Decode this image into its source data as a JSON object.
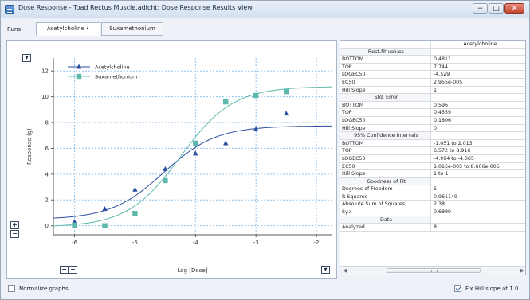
{
  "window": {
    "title": "Dose Response - Toad Rectus Muscle.adicht: Dose Response Results View",
    "buttons": {
      "minimize": "−",
      "maximize": "□",
      "close": "✕"
    }
  },
  "runs": {
    "label": "Runs:",
    "tabs": [
      {
        "label": "Acetylcholine •",
        "selected": true
      },
      {
        "label": "Suxamethonium",
        "selected": false
      }
    ]
  },
  "graph": {
    "controls": {
      "y_zoom_in": "+",
      "y_zoom_out": "−",
      "x_zoom_out": "−",
      "x_zoom_in": "+",
      "menu_top": "▾",
      "menu_bottom": "▾"
    }
  },
  "chart_data": {
    "type": "scatter",
    "xlabel": "Log [Dose]",
    "ylabel": "Response (g)",
    "xlim": [
      -6.35,
      -1.75
    ],
    "ylim": [
      -0.7,
      13.0
    ],
    "x_ticks": [
      -6,
      -5,
      -4,
      -3,
      -2
    ],
    "y_ticks": [
      0,
      2,
      4,
      6,
      8,
      10,
      12
    ],
    "grid": true,
    "legend": "top-left",
    "series": [
      {
        "name": "Acetylcholine",
        "color": "#2a4ea1",
        "marker": "triangle",
        "points": [
          [
            -6.0,
            0.3
          ],
          [
            -5.5,
            1.3
          ],
          [
            -5.0,
            2.8
          ],
          [
            -4.5,
            4.4
          ],
          [
            -4.0,
            5.6
          ],
          [
            -3.5,
            6.4
          ],
          [
            -3.0,
            7.5
          ],
          [
            -2.5,
            8.7
          ]
        ],
        "fit": {
          "bottom": 0.4811,
          "top": 7.744,
          "logec50": -4.529,
          "hill": 1
        }
      },
      {
        "name": "Suxamethonium",
        "color": "#5cb8aa",
        "marker": "square",
        "points": [
          [
            -6.0,
            0.05
          ],
          [
            -5.5,
            0.0
          ],
          [
            -5.0,
            0.95
          ],
          [
            -4.5,
            3.5
          ],
          [
            -4.0,
            6.4
          ],
          [
            -3.5,
            9.6
          ],
          [
            -3.0,
            10.1
          ],
          [
            -2.5,
            10.4
          ]
        ],
        "fit": {
          "bottom": -0.1,
          "top": 10.8,
          "logec50": -4.25,
          "hill": 1
        }
      }
    ]
  },
  "results": {
    "column_header": "Acetylcholine",
    "rows": [
      {
        "k": "Best-fit values",
        "v": "",
        "section": true
      },
      {
        "k": "BOTTOM",
        "v": "0.4811"
      },
      {
        "k": "TOP",
        "v": "7.744"
      },
      {
        "k": "LOGEC50",
        "v": "-4.529"
      },
      {
        "k": "EC50",
        "v": "2.955e-005"
      },
      {
        "k": "Hill Slope",
        "v": "1"
      },
      {
        "k": "Std. Error",
        "v": "",
        "section": true
      },
      {
        "k": "BOTTOM",
        "v": "0.596"
      },
      {
        "k": "TOP",
        "v": "0.4559"
      },
      {
        "k": "LOGEC50",
        "v": "0.1806"
      },
      {
        "k": "Hill Slope",
        "v": "0"
      },
      {
        "k": "95% Confidence Intervals",
        "v": "",
        "section": true
      },
      {
        "k": "BOTTOM",
        "v": "-1.051 to 2.013"
      },
      {
        "k": "TOP",
        "v": "6.572 to 8.916"
      },
      {
        "k": "LOGEC50",
        "v": "-4.994 to -4.065"
      },
      {
        "k": "EC50",
        "v": "1.015e-005 to 8.606e-005"
      },
      {
        "k": "Hill Slope",
        "v": "1 to 1"
      },
      {
        "k": "Goodness of Fit",
        "v": "",
        "section": true
      },
      {
        "k": "Degrees of Freedom",
        "v": "5"
      },
      {
        "k": "R Squared",
        "v": "0.961149"
      },
      {
        "k": "Absolute Sum of Squares",
        "v": "2.38"
      },
      {
        "k": "Sy.x",
        "v": "0.6899"
      },
      {
        "k": "Data",
        "v": "",
        "section": true
      },
      {
        "k": "Analyzed",
        "v": "8"
      }
    ]
  },
  "footer": {
    "normalize_label": "Normalize graphs",
    "normalize_checked": false,
    "fix_hill_label": "Fix Hill slope at 1.0",
    "fix_hill_checked": true
  }
}
